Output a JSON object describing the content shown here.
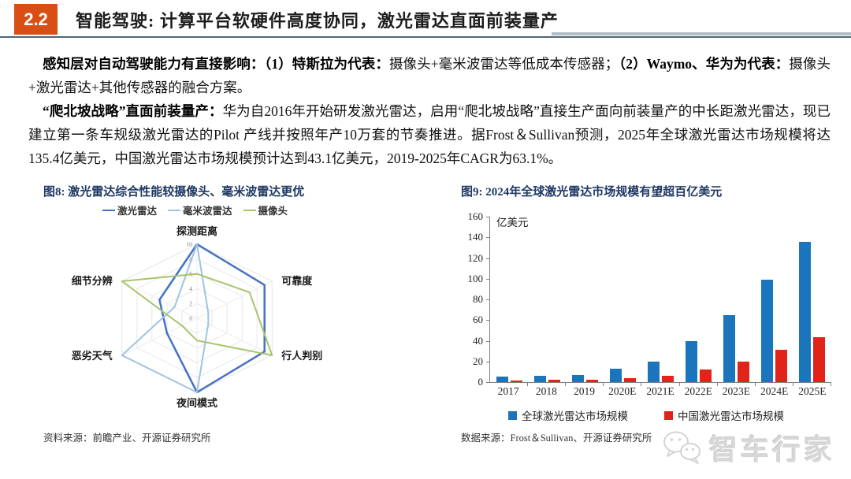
{
  "header": {
    "section_number": "2.2",
    "title": "智能驾驶: 计算平台软硬件高度协同，激光雷达直面前装量产"
  },
  "body": {
    "paragraph1": {
      "bold1": "感知层对自动驾驶能力有直接影响：（1）特斯拉为代表：",
      "normal1": "摄像头+毫米波雷达等低成本传感器；",
      "bold2": "（2）Waymo、华为为代表：",
      "normal2": "摄像头+激光雷达+其他传感器的融合方案。"
    },
    "paragraph2": {
      "bold1": "“爬北坡战略”直面前装量产：",
      "normal1": "华为自2016年开始研发激光雷达，启用“爬北坡战略”直接生产面向前装量产的中长距激光雷达，现已建立第一条车规级激光雷达的Pilot 产线并按照年产10万套的节奏推进。据Frost＆Sullivan预测，2025年全球激光雷达市场规模将达135.4亿美元，中国激光雷达市场规模预计达到43.1亿美元，2019-2025年CAGR为63.1%。"
    }
  },
  "figure8": {
    "caption": "图8: 激光雷达综合性能较摄像头、毫米波雷达更优",
    "source": "资料来源：前瞻产业、开源证券研究所"
  },
  "figure9": {
    "caption": "图9: 2024年全球激光雷达市场规模有望超百亿美元",
    "unit_label": "亿美元",
    "source": "数据来源：Frost＆Sullivan、开源证券研究所"
  },
  "watermark": {
    "text": "智车行家"
  },
  "chart_data": [
    {
      "type": "radar",
      "title": "图8: 激光雷达综合性能较摄像头、毫米波雷达更优",
      "axes": [
        "探测距离",
        "可靠度",
        "行人判别",
        "夜间模式",
        "恶劣天气",
        "细节分辨"
      ],
      "scale": {
        "min": 0,
        "max": 10,
        "step": 2
      },
      "grid": true,
      "legend_position": "top",
      "series": [
        {
          "name": "激光雷达",
          "color": "#4472C4",
          "values": [
            10,
            9,
            9,
            10,
            4,
            5
          ]
        },
        {
          "name": "毫米波雷达",
          "color": "#9DC3E6",
          "values": [
            10,
            1.5,
            1.5,
            10,
            10,
            3
          ]
        },
        {
          "name": "摄像头",
          "color": "#A9C46C",
          "values": [
            6,
            7,
            10,
            3,
            2,
            10
          ]
        }
      ]
    },
    {
      "type": "bar",
      "title": "图9: 2024年全球激光雷达市场规模有望超百亿美元",
      "categories": [
        "2017",
        "2018",
        "2019",
        "2020E",
        "2021E",
        "2022E",
        "2023E",
        "2024E",
        "2025E"
      ],
      "series": [
        {
          "name": "全球激光雷达市场规模",
          "color": "#1B75BC",
          "values": [
            5,
            6,
            7,
            13,
            20,
            40,
            65,
            99,
            135.4
          ]
        },
        {
          "name": "中国激光雷达市场规模",
          "color": "#E2231A",
          "values": [
            1.5,
            2,
            2.6,
            4,
            6.5,
            12,
            20,
            31,
            43.1
          ]
        }
      ],
      "xlabel": "",
      "ylabel": "亿美元",
      "ylim": [
        0,
        160
      ],
      "ytick_step": 20,
      "grid": false,
      "legend_position": "bottom"
    }
  ]
}
